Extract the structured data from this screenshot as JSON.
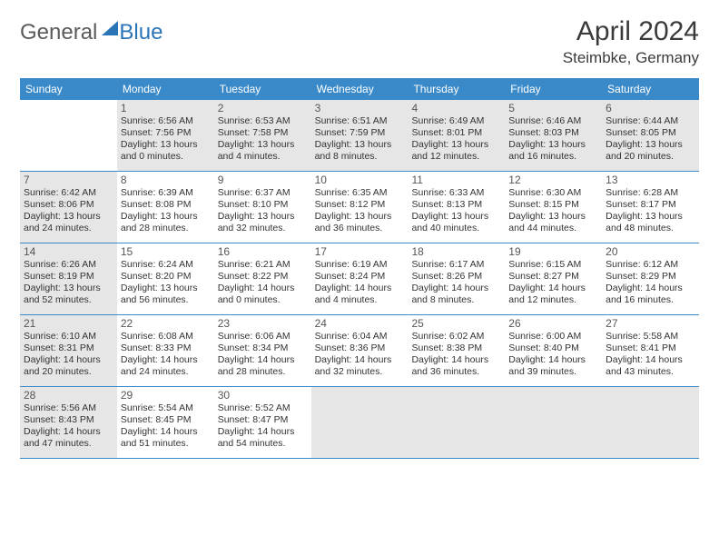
{
  "logo": {
    "part1": "General",
    "part2": "Blue"
  },
  "title": "April 2024",
  "location": "Steimbke, Germany",
  "dayHeaders": [
    "Sunday",
    "Monday",
    "Tuesday",
    "Wednesday",
    "Thursday",
    "Friday",
    "Saturday"
  ],
  "colors": {
    "headerBg": "#3a8ac9",
    "shadedBg": "#e6e6e6",
    "accent": "#2a74b8"
  },
  "weeks": [
    [
      {
        "blank": true
      },
      {
        "day": "1",
        "shaded": true,
        "sunrise": "Sunrise: 6:56 AM",
        "sunset": "Sunset: 7:56 PM",
        "dl1": "Daylight: 13 hours",
        "dl2": "and 0 minutes."
      },
      {
        "day": "2",
        "shaded": true,
        "sunrise": "Sunrise: 6:53 AM",
        "sunset": "Sunset: 7:58 PM",
        "dl1": "Daylight: 13 hours",
        "dl2": "and 4 minutes."
      },
      {
        "day": "3",
        "shaded": true,
        "sunrise": "Sunrise: 6:51 AM",
        "sunset": "Sunset: 7:59 PM",
        "dl1": "Daylight: 13 hours",
        "dl2": "and 8 minutes."
      },
      {
        "day": "4",
        "shaded": true,
        "sunrise": "Sunrise: 6:49 AM",
        "sunset": "Sunset: 8:01 PM",
        "dl1": "Daylight: 13 hours",
        "dl2": "and 12 minutes."
      },
      {
        "day": "5",
        "shaded": true,
        "sunrise": "Sunrise: 6:46 AM",
        "sunset": "Sunset: 8:03 PM",
        "dl1": "Daylight: 13 hours",
        "dl2": "and 16 minutes."
      },
      {
        "day": "6",
        "shaded": true,
        "sunrise": "Sunrise: 6:44 AM",
        "sunset": "Sunset: 8:05 PM",
        "dl1": "Daylight: 13 hours",
        "dl2": "and 20 minutes."
      }
    ],
    [
      {
        "day": "7",
        "shaded": true,
        "sunrise": "Sunrise: 6:42 AM",
        "sunset": "Sunset: 8:06 PM",
        "dl1": "Daylight: 13 hours",
        "dl2": "and 24 minutes."
      },
      {
        "day": "8",
        "sunrise": "Sunrise: 6:39 AM",
        "sunset": "Sunset: 8:08 PM",
        "dl1": "Daylight: 13 hours",
        "dl2": "and 28 minutes."
      },
      {
        "day": "9",
        "sunrise": "Sunrise: 6:37 AM",
        "sunset": "Sunset: 8:10 PM",
        "dl1": "Daylight: 13 hours",
        "dl2": "and 32 minutes."
      },
      {
        "day": "10",
        "sunrise": "Sunrise: 6:35 AM",
        "sunset": "Sunset: 8:12 PM",
        "dl1": "Daylight: 13 hours",
        "dl2": "and 36 minutes."
      },
      {
        "day": "11",
        "sunrise": "Sunrise: 6:33 AM",
        "sunset": "Sunset: 8:13 PM",
        "dl1": "Daylight: 13 hours",
        "dl2": "and 40 minutes."
      },
      {
        "day": "12",
        "sunrise": "Sunrise: 6:30 AM",
        "sunset": "Sunset: 8:15 PM",
        "dl1": "Daylight: 13 hours",
        "dl2": "and 44 minutes."
      },
      {
        "day": "13",
        "sunrise": "Sunrise: 6:28 AM",
        "sunset": "Sunset: 8:17 PM",
        "dl1": "Daylight: 13 hours",
        "dl2": "and 48 minutes."
      }
    ],
    [
      {
        "day": "14",
        "shaded": true,
        "sunrise": "Sunrise: 6:26 AM",
        "sunset": "Sunset: 8:19 PM",
        "dl1": "Daylight: 13 hours",
        "dl2": "and 52 minutes."
      },
      {
        "day": "15",
        "sunrise": "Sunrise: 6:24 AM",
        "sunset": "Sunset: 8:20 PM",
        "dl1": "Daylight: 13 hours",
        "dl2": "and 56 minutes."
      },
      {
        "day": "16",
        "sunrise": "Sunrise: 6:21 AM",
        "sunset": "Sunset: 8:22 PM",
        "dl1": "Daylight: 14 hours",
        "dl2": "and 0 minutes."
      },
      {
        "day": "17",
        "sunrise": "Sunrise: 6:19 AM",
        "sunset": "Sunset: 8:24 PM",
        "dl1": "Daylight: 14 hours",
        "dl2": "and 4 minutes."
      },
      {
        "day": "18",
        "sunrise": "Sunrise: 6:17 AM",
        "sunset": "Sunset: 8:26 PM",
        "dl1": "Daylight: 14 hours",
        "dl2": "and 8 minutes."
      },
      {
        "day": "19",
        "sunrise": "Sunrise: 6:15 AM",
        "sunset": "Sunset: 8:27 PM",
        "dl1": "Daylight: 14 hours",
        "dl2": "and 12 minutes."
      },
      {
        "day": "20",
        "sunrise": "Sunrise: 6:12 AM",
        "sunset": "Sunset: 8:29 PM",
        "dl1": "Daylight: 14 hours",
        "dl2": "and 16 minutes."
      }
    ],
    [
      {
        "day": "21",
        "shaded": true,
        "sunrise": "Sunrise: 6:10 AM",
        "sunset": "Sunset: 8:31 PM",
        "dl1": "Daylight: 14 hours",
        "dl2": "and 20 minutes."
      },
      {
        "day": "22",
        "sunrise": "Sunrise: 6:08 AM",
        "sunset": "Sunset: 8:33 PM",
        "dl1": "Daylight: 14 hours",
        "dl2": "and 24 minutes."
      },
      {
        "day": "23",
        "sunrise": "Sunrise: 6:06 AM",
        "sunset": "Sunset: 8:34 PM",
        "dl1": "Daylight: 14 hours",
        "dl2": "and 28 minutes."
      },
      {
        "day": "24",
        "sunrise": "Sunrise: 6:04 AM",
        "sunset": "Sunset: 8:36 PM",
        "dl1": "Daylight: 14 hours",
        "dl2": "and 32 minutes."
      },
      {
        "day": "25",
        "sunrise": "Sunrise: 6:02 AM",
        "sunset": "Sunset: 8:38 PM",
        "dl1": "Daylight: 14 hours",
        "dl2": "and 36 minutes."
      },
      {
        "day": "26",
        "sunrise": "Sunrise: 6:00 AM",
        "sunset": "Sunset: 8:40 PM",
        "dl1": "Daylight: 14 hours",
        "dl2": "and 39 minutes."
      },
      {
        "day": "27",
        "sunrise": "Sunrise: 5:58 AM",
        "sunset": "Sunset: 8:41 PM",
        "dl1": "Daylight: 14 hours",
        "dl2": "and 43 minutes."
      }
    ],
    [
      {
        "day": "28",
        "shaded": true,
        "sunrise": "Sunrise: 5:56 AM",
        "sunset": "Sunset: 8:43 PM",
        "dl1": "Daylight: 14 hours",
        "dl2": "and 47 minutes."
      },
      {
        "day": "29",
        "sunrise": "Sunrise: 5:54 AM",
        "sunset": "Sunset: 8:45 PM",
        "dl1": "Daylight: 14 hours",
        "dl2": "and 51 minutes."
      },
      {
        "day": "30",
        "sunrise": "Sunrise: 5:52 AM",
        "sunset": "Sunset: 8:47 PM",
        "dl1": "Daylight: 14 hours",
        "dl2": "and 54 minutes."
      },
      {
        "blank": true,
        "shaded": true
      },
      {
        "blank": true,
        "shaded": true
      },
      {
        "blank": true,
        "shaded": true
      },
      {
        "blank": true,
        "shaded": true
      }
    ]
  ]
}
